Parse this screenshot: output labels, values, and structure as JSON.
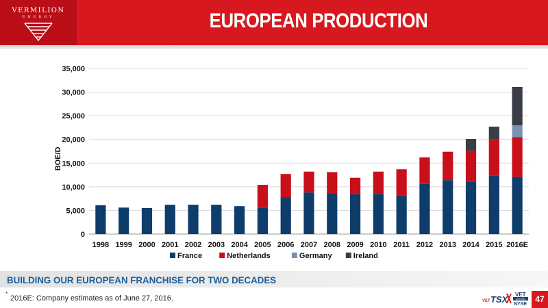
{
  "header": {
    "logo_text": "VERMILION",
    "logo_subtext": "ENERGY",
    "title": "EUROPEAN PRODUCTION"
  },
  "chart_data": {
    "type": "bar",
    "stacked": true,
    "title": "",
    "xlabel": "",
    "ylabel": "BOE/D",
    "ylim": [
      0,
      35000
    ],
    "yticks": [
      0,
      5000,
      10000,
      15000,
      20000,
      25000,
      30000,
      35000
    ],
    "ytick_labels": [
      "0",
      "5,000",
      "10,000",
      "15,000",
      "20,000",
      "25,000",
      "30,000",
      "35,000"
    ],
    "grid": true,
    "legend_position": "bottom",
    "categories": [
      "1998",
      "1999",
      "2000",
      "2001",
      "2002",
      "2003",
      "2004",
      "2005",
      "2006",
      "2007",
      "2008",
      "2009",
      "2010",
      "2011",
      "2012",
      "2013",
      "2014",
      "2015",
      "2016E"
    ],
    "series": [
      {
        "name": "France",
        "color": "#0e3d6b",
        "values": [
          6100,
          5600,
          5500,
          6200,
          6200,
          6200,
          5900,
          5600,
          7800,
          8800,
          8600,
          8400,
          8500,
          8200,
          10600,
          11400,
          11000,
          12400,
          12100
        ]
      },
      {
        "name": "Netherlands",
        "color": "#c8101a",
        "values": [
          0,
          0,
          0,
          0,
          0,
          0,
          0,
          4800,
          4900,
          4400,
          4500,
          3500,
          4700,
          5500,
          5600,
          6000,
          6600,
          7600,
          8400
        ]
      },
      {
        "name": "Germany",
        "color": "#7a93b0",
        "values": [
          0,
          0,
          0,
          0,
          0,
          0,
          0,
          0,
          0,
          0,
          0,
          0,
          0,
          0,
          0,
          0,
          0,
          0,
          2500
        ]
      },
      {
        "name": "Ireland",
        "color": "#3a3d45",
        "values": [
          0,
          0,
          0,
          0,
          0,
          0,
          0,
          0,
          0,
          0,
          0,
          0,
          0,
          0,
          0,
          0,
          2500,
          2700,
          8100
        ]
      }
    ]
  },
  "footer": {
    "subtitle": "BUILDING OUR EUROPEAN FRANCHISE FOR TWO DECADES",
    "footnote_marker": "*",
    "footnote": "2016E: Company estimates as of June 27, 2016.",
    "ticker_tsx_prefix": "VET",
    "ticker_tsx": "TSX",
    "ticker_nyse_symbol": "VET",
    "ticker_listed": "LISTED",
    "ticker_nyse": "NYSE",
    "page_number": "47"
  },
  "colors": {
    "brand_red": "#d7191f",
    "subtitle_blue": "#1d5f9b"
  }
}
